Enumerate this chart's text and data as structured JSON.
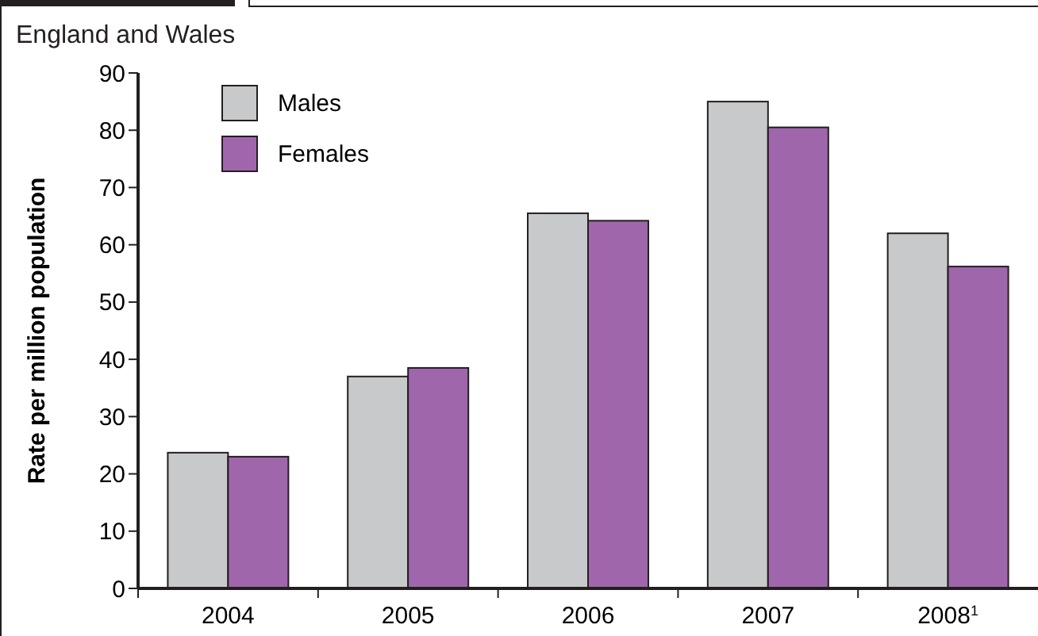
{
  "chart_data": {
    "type": "bar",
    "subtitle": "England and Wales",
    "ylabel": "Rate per million population",
    "categories": [
      "2004",
      "2005",
      "2006",
      "2007",
      "2008$^{1}$"
    ],
    "series": [
      {
        "name": "Males",
        "color": "#c8c9cb",
        "values": [
          23.7,
          37,
          65.5,
          85,
          62
        ]
      },
      {
        "name": "Females",
        "color": "#a066ac",
        "values": [
          23,
          38.5,
          64.2,
          80.5,
          56.2
        ]
      }
    ],
    "ylim": [
      0,
      90
    ],
    "yticks": [
      0,
      10,
      20,
      30,
      40,
      50,
      60,
      70,
      80,
      90
    ],
    "grid": false,
    "legend": "top left"
  }
}
